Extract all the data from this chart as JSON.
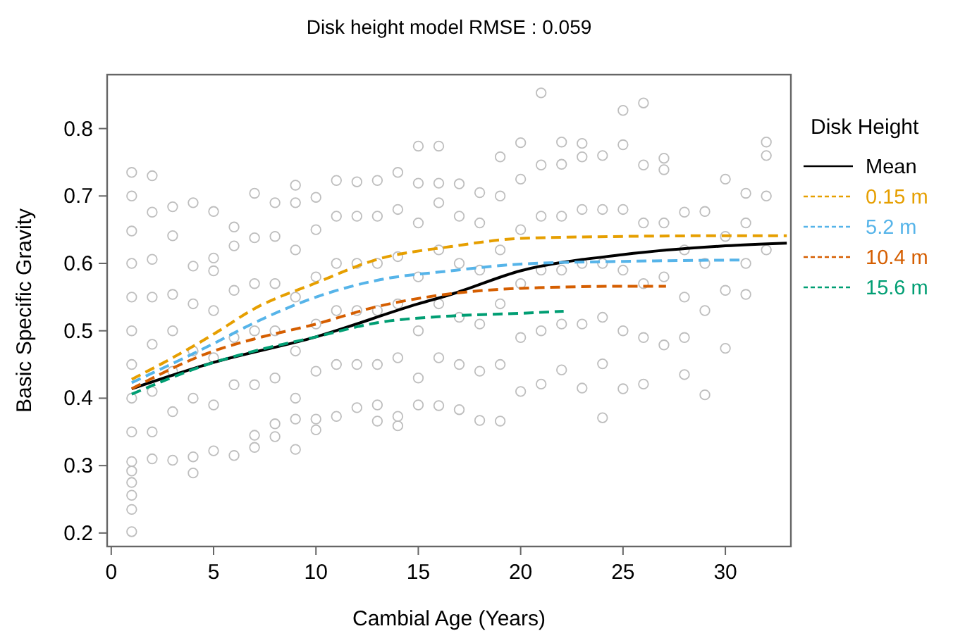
{
  "chart_data": {
    "type": "line",
    "title": "Disk height model RMSE : 0.059",
    "xlabel": "Cambial Age (Years)",
    "ylabel": "Basic Specific Gravity",
    "legend_title": "Disk Height",
    "legend": "right",
    "grid": false,
    "xlim": [
      -0.2,
      33.2
    ],
    "xticks": [
      0,
      5,
      10,
      15,
      20,
      25,
      30
    ],
    "ylim": [
      0.18,
      0.88
    ],
    "yticks": [
      0.2,
      0.3,
      0.4,
      0.5,
      0.6,
      0.7,
      0.8
    ],
    "series": [
      {
        "type": "scatter",
        "marker": "circle",
        "color": "#bebebe",
        "x": [
          1,
          1,
          1,
          1,
          1,
          1,
          1,
          1,
          1,
          1,
          1,
          1,
          1,
          1,
          1,
          2,
          2,
          2,
          2,
          2,
          2,
          2,
          2,
          3,
          3,
          3,
          3,
          3,
          3,
          3,
          4,
          4,
          4,
          4,
          4,
          4,
          4,
          5,
          5,
          5,
          5,
          5,
          5,
          5,
          6,
          6,
          6,
          6,
          6,
          6,
          7,
          7,
          7,
          7,
          7,
          7,
          7,
          8,
          8,
          8,
          8,
          8,
          8,
          8,
          9,
          9,
          9,
          9,
          9,
          9,
          9,
          9,
          10,
          10,
          10,
          10,
          10,
          10,
          10,
          11,
          11,
          11,
          11,
          11,
          11,
          12,
          12,
          12,
          12,
          12,
          12,
          13,
          13,
          13,
          13,
          13,
          13,
          13,
          14,
          14,
          14,
          14,
          14,
          14,
          14,
          15,
          15,
          15,
          15,
          15,
          15,
          15,
          16,
          16,
          16,
          16,
          16,
          16,
          16,
          17,
          17,
          17,
          17,
          17,
          17,
          18,
          18,
          18,
          18,
          18,
          18,
          19,
          19,
          19,
          19,
          19,
          19,
          20,
          20,
          20,
          20,
          20,
          20,
          21,
          21,
          21,
          21,
          21,
          21,
          22,
          22,
          22,
          22,
          22,
          22,
          23,
          23,
          23,
          23,
          23,
          23,
          24,
          24,
          24,
          24,
          24,
          24,
          25,
          25,
          25,
          25,
          25,
          25,
          26,
          26,
          26,
          26,
          26,
          26,
          27,
          27,
          27,
          27,
          27,
          28,
          28,
          28,
          28,
          28,
          29,
          29,
          29,
          29,
          30,
          30,
          30,
          30,
          31,
          31,
          31,
          31,
          32,
          32,
          32,
          32
        ],
        "values": [
          0.735,
          0.7,
          0.648,
          0.6,
          0.55,
          0.5,
          0.45,
          0.4,
          0.35,
          0.306,
          0.292,
          0.275,
          0.256,
          0.235,
          0.202,
          0.73,
          0.676,
          0.606,
          0.55,
          0.48,
          0.41,
          0.35,
          0.31,
          0.684,
          0.641,
          0.554,
          0.5,
          0.44,
          0.38,
          0.308,
          0.69,
          0.596,
          0.54,
          0.47,
          0.4,
          0.313,
          0.289,
          0.677,
          0.608,
          0.589,
          0.53,
          0.46,
          0.39,
          0.322,
          0.654,
          0.626,
          0.56,
          0.49,
          0.42,
          0.315,
          0.704,
          0.638,
          0.57,
          0.5,
          0.42,
          0.345,
          0.327,
          0.69,
          0.64,
          0.57,
          0.5,
          0.43,
          0.362,
          0.343,
          0.716,
          0.69,
          0.62,
          0.55,
          0.47,
          0.4,
          0.369,
          0.324,
          0.698,
          0.65,
          0.58,
          0.51,
          0.44,
          0.369,
          0.353,
          0.723,
          0.67,
          0.6,
          0.53,
          0.45,
          0.373,
          0.721,
          0.67,
          0.6,
          0.53,
          0.45,
          0.386,
          0.723,
          0.67,
          0.6,
          0.53,
          0.45,
          0.39,
          0.366,
          0.735,
          0.68,
          0.61,
          0.54,
          0.46,
          0.373,
          0.359,
          0.774,
          0.719,
          0.66,
          0.58,
          0.5,
          0.43,
          0.39,
          0.774,
          0.719,
          0.69,
          0.62,
          0.54,
          0.46,
          0.389,
          0.718,
          0.67,
          0.6,
          0.52,
          0.45,
          0.383,
          0.705,
          0.66,
          0.59,
          0.51,
          0.44,
          0.367,
          0.758,
          0.7,
          0.62,
          0.54,
          0.45,
          0.366,
          0.779,
          0.725,
          0.65,
          0.57,
          0.49,
          0.41,
          0.853,
          0.746,
          0.67,
          0.59,
          0.5,
          0.421,
          0.78,
          0.747,
          0.67,
          0.59,
          0.51,
          0.442,
          0.778,
          0.758,
          0.68,
          0.6,
          0.51,
          0.415,
          0.76,
          0.68,
          0.6,
          0.52,
          0.451,
          0.371,
          0.827,
          0.776,
          0.68,
          0.59,
          0.5,
          0.414,
          0.838,
          0.746,
          0.66,
          0.57,
          0.49,
          0.421,
          0.756,
          0.739,
          0.66,
          0.58,
          0.479,
          0.676,
          0.62,
          0.55,
          0.49,
          0.435,
          0.677,
          0.6,
          0.53,
          0.405,
          0.725,
          0.64,
          0.56,
          0.474,
          0.704,
          0.66,
          0.6,
          0.554,
          0.78,
          0.76,
          0.7,
          0.62
        ]
      },
      {
        "name": "Mean",
        "color": "#000000",
        "line_style": "solid",
        "x": [
          1,
          5,
          10,
          15,
          16.6,
          20,
          25,
          30,
          33
        ],
        "values": [
          0.414,
          0.453,
          0.491,
          0.54,
          0.554,
          0.589,
          0.613,
          0.626,
          0.63
        ]
      },
      {
        "name": "0.15 m",
        "color": "#e69f00",
        "line_style": "dashed",
        "x": [
          1,
          3,
          5,
          7,
          10,
          13,
          16.6,
          20,
          25,
          30,
          33
        ],
        "values": [
          0.428,
          0.46,
          0.495,
          0.533,
          0.571,
          0.606,
          0.625,
          0.637,
          0.64,
          0.641,
          0.641
        ]
      },
      {
        "name": "5.2 m",
        "color": "#56b4e9",
        "line_style": "dashed",
        "x": [
          1,
          5,
          7,
          10,
          13,
          16.6,
          20,
          25,
          30.7
        ],
        "values": [
          0.423,
          0.481,
          0.512,
          0.55,
          0.575,
          0.589,
          0.599,
          0.603,
          0.605
        ]
      },
      {
        "name": "10.4 m",
        "color": "#d55e00",
        "line_style": "dashed",
        "x": [
          1,
          5,
          7,
          10,
          13,
          16.6,
          20,
          25,
          27.1
        ],
        "values": [
          0.414,
          0.47,
          0.488,
          0.51,
          0.536,
          0.555,
          0.563,
          0.566,
          0.566
        ]
      },
      {
        "name": "15.6 m",
        "color": "#009e73",
        "line_style": "dashed",
        "x": [
          1,
          5,
          7,
          10,
          13,
          16.6,
          20,
          22.1
        ],
        "values": [
          0.406,
          0.453,
          0.47,
          0.491,
          0.512,
          0.522,
          0.526,
          0.529
        ]
      }
    ]
  }
}
